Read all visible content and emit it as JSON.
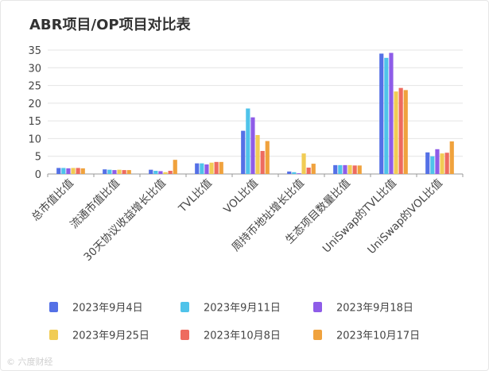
{
  "chart_data": {
    "type": "bar",
    "title": "ABR项目/OP项目对比表",
    "xlabel": "",
    "ylabel": "",
    "ylim": [
      0,
      35
    ],
    "yticks": [
      0,
      5,
      10,
      15,
      20,
      25,
      30,
      35
    ],
    "grid": true,
    "legend_position": "bottom",
    "categories": [
      "总市值比值",
      "流通市值比值",
      "30天协议收益增长比值",
      "TVL比值",
      "VOL比值",
      "周持币地址增长比值",
      "生态项目数量比值",
      "UniSwap的TVL比值",
      "UniSwap的VOL比值"
    ],
    "series": [
      {
        "name": "2023年9月4日",
        "color": "#5470e6",
        "values": [
          1.7,
          1.3,
          1.2,
          3.0,
          12.2,
          0.7,
          2.5,
          34.0,
          6.1
        ]
      },
      {
        "name": "2023年9月11日",
        "color": "#4fc3ea",
        "values": [
          1.7,
          1.2,
          0.9,
          3.0,
          18.5,
          0.5,
          2.5,
          32.8,
          5.0
        ]
      },
      {
        "name": "2023年9月18日",
        "color": "#8e5ce8",
        "values": [
          1.6,
          1.1,
          0.8,
          2.7,
          16.0,
          0.2,
          2.5,
          34.2,
          7.0
        ]
      },
      {
        "name": "2023年9月25日",
        "color": "#f1cc54",
        "values": [
          1.7,
          1.2,
          0.5,
          3.2,
          11.0,
          5.8,
          2.5,
          23.3,
          5.8
        ]
      },
      {
        "name": "2023年10月8日",
        "color": "#ee6b5f",
        "values": [
          1.7,
          1.1,
          0.9,
          3.4,
          6.5,
          1.8,
          2.4,
          24.3,
          6.0
        ]
      },
      {
        "name": "2023年10月17日",
        "color": "#f0a23d",
        "values": [
          1.6,
          1.1,
          4.0,
          3.4,
          9.3,
          2.9,
          2.4,
          23.7,
          9.2
        ]
      }
    ]
  },
  "watermark": "© 六度财经"
}
